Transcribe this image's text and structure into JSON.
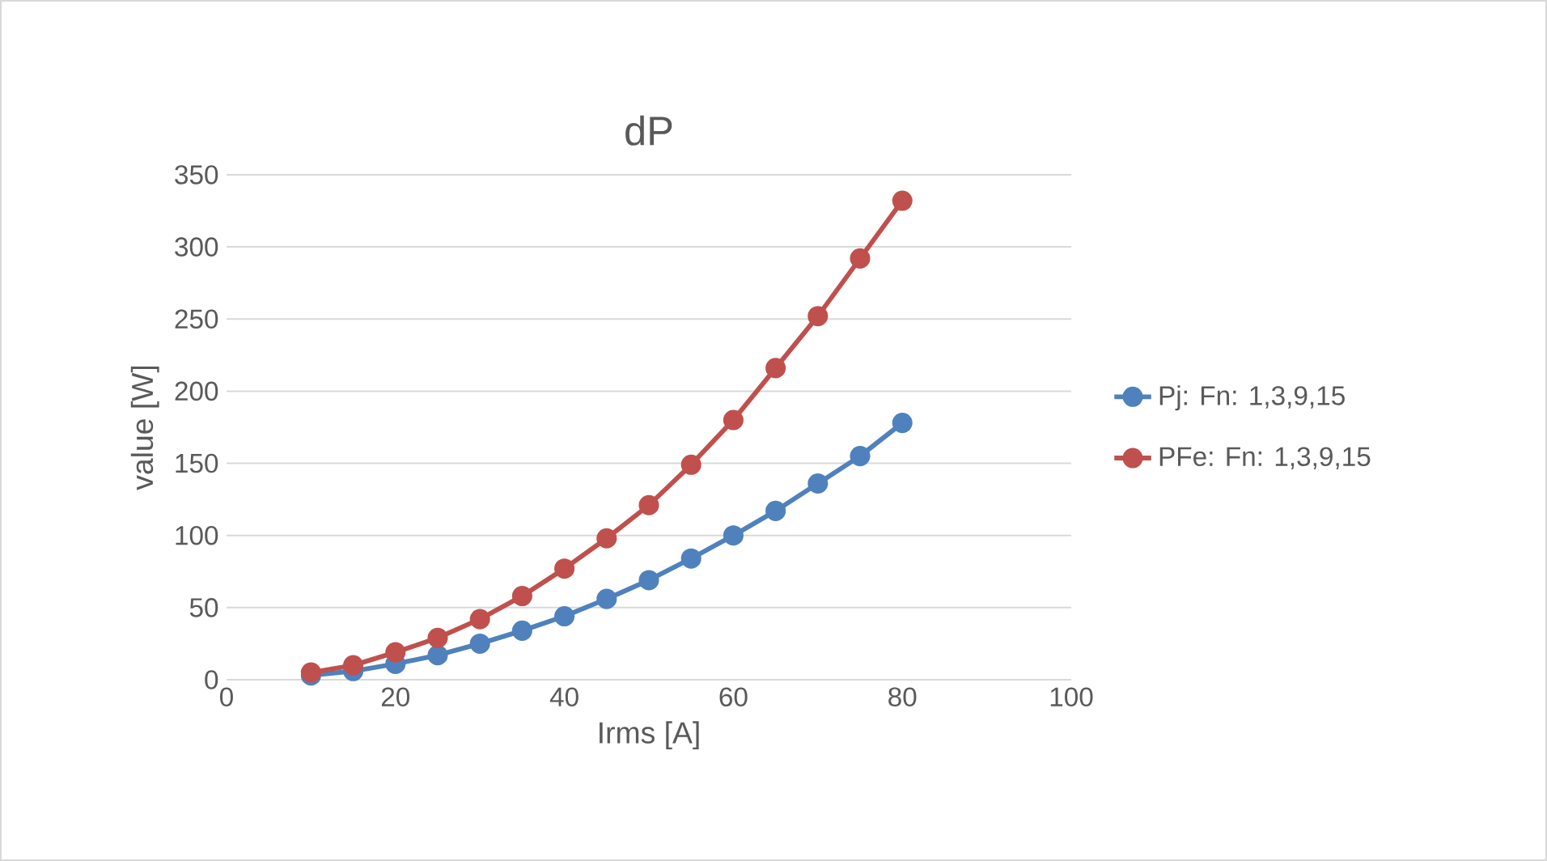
{
  "chart_data": {
    "type": "line",
    "title": "dP",
    "xlabel": "Irms [A]",
    "ylabel": "value [W]",
    "x": [
      10,
      15,
      20,
      25,
      30,
      35,
      40,
      45,
      50,
      55,
      60,
      65,
      70,
      75,
      80
    ],
    "series": [
      {
        "name": "Pj: Fn: 1,3,9,15",
        "color": "#4f81bd",
        "values": [
          3,
          6,
          11,
          17,
          25,
          34,
          44,
          56,
          69,
          84,
          100,
          117,
          136,
          155,
          178
        ]
      },
      {
        "name": "PFe: Fn: 1,3,9,15",
        "color": "#c0504d",
        "values": [
          5,
          10,
          19,
          29,
          42,
          58,
          77,
          98,
          121,
          149,
          180,
          216,
          252,
          292,
          332
        ]
      }
    ],
    "xlim": [
      0,
      100
    ],
    "xticks": [
      0,
      20,
      40,
      60,
      80,
      100
    ],
    "ylim": [
      0,
      350
    ],
    "yticks": [
      0,
      50,
      100,
      150,
      200,
      250,
      300,
      350
    ],
    "grid": "y",
    "legend": "right",
    "marker": "circle",
    "line_style": "solid"
  }
}
